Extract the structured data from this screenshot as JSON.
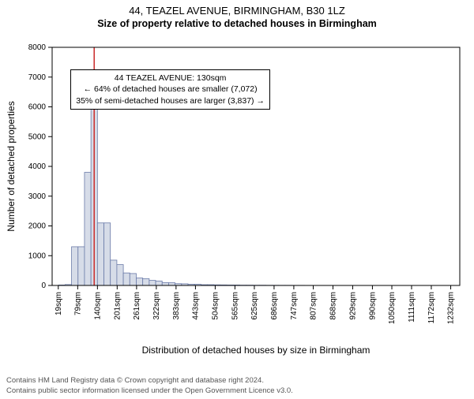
{
  "header": {
    "line1": "44, TEAZEL AVENUE, BIRMINGHAM, B30 1LZ",
    "line2": "Size of property relative to detached houses in Birmingham"
  },
  "annotation": {
    "line1": "44 TEAZEL AVENUE: 130sqm",
    "line2": "← 64% of detached houses are smaller (7,072)",
    "line3": "35% of semi-detached houses are larger (3,837) →"
  },
  "footer": {
    "line1": "Contains HM Land Registry data © Crown copyright and database right 2024.",
    "line2": "Contains public sector information licensed under the Open Government Licence v3.0."
  },
  "chart": {
    "type": "histogram",
    "xlabel": "Distribution of detached houses by size in Birmingham",
    "ylabel": "Number of detached properties",
    "x_tick_labels": [
      "19sqm",
      "79sqm",
      "140sqm",
      "201sqm",
      "261sqm",
      "322sqm",
      "383sqm",
      "443sqm",
      "504sqm",
      "565sqm",
      "625sqm",
      "686sqm",
      "747sqm",
      "807sqm",
      "868sqm",
      "929sqm",
      "990sqm",
      "1050sqm",
      "1111sqm",
      "1172sqm",
      "1232sqm"
    ],
    "x_tick_positions": [
      19,
      79,
      140,
      201,
      261,
      322,
      383,
      443,
      504,
      565,
      625,
      686,
      747,
      807,
      868,
      929,
      990,
      1050,
      1111,
      1172,
      1232
    ],
    "bins": [
      0,
      20,
      40,
      60,
      80,
      100,
      120,
      140,
      160,
      180,
      200,
      220,
      240,
      260,
      280,
      300,
      320,
      340,
      360,
      380,
      400,
      420,
      440,
      460,
      480,
      500,
      520,
      540,
      560,
      580,
      600,
      620,
      640,
      660,
      680,
      700,
      720,
      740,
      760,
      780,
      800,
      820,
      840,
      860,
      880,
      900,
      920,
      940,
      960,
      980,
      1000,
      1020,
      1040,
      1060,
      1080,
      1100,
      1120,
      1140,
      1160,
      1180,
      1200,
      1220,
      1240,
      1260
    ],
    "counts": [
      0,
      15,
      30,
      1300,
      1300,
      3800,
      6800,
      2100,
      2100,
      850,
      700,
      420,
      400,
      250,
      230,
      170,
      150,
      95,
      90,
      60,
      55,
      40,
      40,
      25,
      25,
      20,
      18,
      15,
      15,
      10,
      10,
      8,
      8,
      6,
      6,
      5,
      5,
      4,
      4,
      3,
      3,
      3,
      3,
      2,
      2,
      2,
      2,
      1,
      1,
      1,
      1,
      1,
      1,
      1,
      1,
      1,
      1,
      1,
      1,
      1,
      1,
      1,
      1
    ],
    "marker_x": 130,
    "xlim": [
      0,
      1260
    ],
    "ylim": [
      0,
      8000
    ],
    "ytick_step": 1000,
    "bar_fill": "#d6dce8",
    "bar_stroke": "#6a7aa8",
    "marker_color": "#cc3333",
    "axis_color": "#000000",
    "tick_fontsize": 10,
    "label_fontsize": 12,
    "background_color": "#ffffff"
  }
}
